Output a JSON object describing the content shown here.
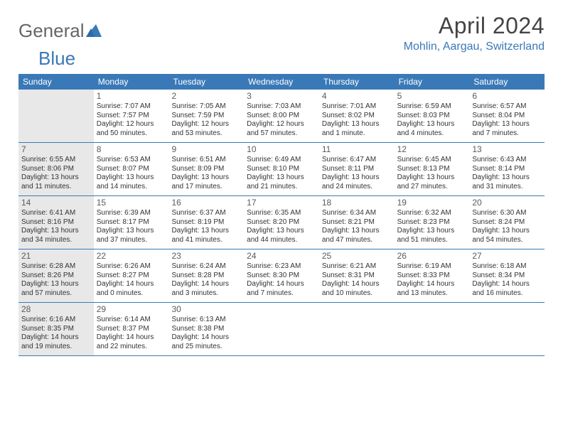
{
  "logo": {
    "part1": "General",
    "part2": "Blue"
  },
  "title": "April 2024",
  "location": "Mohlin, Aargau, Switzerland",
  "colors": {
    "header_bg": "#3a79b7",
    "header_text": "#ffffff",
    "shaded_bg": "#e8e8e8",
    "border": "#3a79b7",
    "logo_gray": "#666666",
    "logo_blue": "#3a79b7",
    "title_color": "#444444"
  },
  "day_headers": [
    "Sunday",
    "Monday",
    "Tuesday",
    "Wednesday",
    "Thursday",
    "Friday",
    "Saturday"
  ],
  "weeks": [
    [
      {
        "shaded": true
      },
      {
        "day": "1",
        "sunrise": "Sunrise: 7:07 AM",
        "sunset": "Sunset: 7:57 PM",
        "dl1": "Daylight: 12 hours",
        "dl2": "and 50 minutes."
      },
      {
        "day": "2",
        "sunrise": "Sunrise: 7:05 AM",
        "sunset": "Sunset: 7:59 PM",
        "dl1": "Daylight: 12 hours",
        "dl2": "and 53 minutes."
      },
      {
        "day": "3",
        "sunrise": "Sunrise: 7:03 AM",
        "sunset": "Sunset: 8:00 PM",
        "dl1": "Daylight: 12 hours",
        "dl2": "and 57 minutes."
      },
      {
        "day": "4",
        "sunrise": "Sunrise: 7:01 AM",
        "sunset": "Sunset: 8:02 PM",
        "dl1": "Daylight: 13 hours",
        "dl2": "and 1 minute."
      },
      {
        "day": "5",
        "sunrise": "Sunrise: 6:59 AM",
        "sunset": "Sunset: 8:03 PM",
        "dl1": "Daylight: 13 hours",
        "dl2": "and 4 minutes."
      },
      {
        "day": "6",
        "sunrise": "Sunrise: 6:57 AM",
        "sunset": "Sunset: 8:04 PM",
        "dl1": "Daylight: 13 hours",
        "dl2": "and 7 minutes."
      }
    ],
    [
      {
        "day": "7",
        "shaded": true,
        "sunrise": "Sunrise: 6:55 AM",
        "sunset": "Sunset: 8:06 PM",
        "dl1": "Daylight: 13 hours",
        "dl2": "and 11 minutes."
      },
      {
        "day": "8",
        "sunrise": "Sunrise: 6:53 AM",
        "sunset": "Sunset: 8:07 PM",
        "dl1": "Daylight: 13 hours",
        "dl2": "and 14 minutes."
      },
      {
        "day": "9",
        "sunrise": "Sunrise: 6:51 AM",
        "sunset": "Sunset: 8:09 PM",
        "dl1": "Daylight: 13 hours",
        "dl2": "and 17 minutes."
      },
      {
        "day": "10",
        "sunrise": "Sunrise: 6:49 AM",
        "sunset": "Sunset: 8:10 PM",
        "dl1": "Daylight: 13 hours",
        "dl2": "and 21 minutes."
      },
      {
        "day": "11",
        "sunrise": "Sunrise: 6:47 AM",
        "sunset": "Sunset: 8:11 PM",
        "dl1": "Daylight: 13 hours",
        "dl2": "and 24 minutes."
      },
      {
        "day": "12",
        "sunrise": "Sunrise: 6:45 AM",
        "sunset": "Sunset: 8:13 PM",
        "dl1": "Daylight: 13 hours",
        "dl2": "and 27 minutes."
      },
      {
        "day": "13",
        "sunrise": "Sunrise: 6:43 AM",
        "sunset": "Sunset: 8:14 PM",
        "dl1": "Daylight: 13 hours",
        "dl2": "and 31 minutes."
      }
    ],
    [
      {
        "day": "14",
        "shaded": true,
        "sunrise": "Sunrise: 6:41 AM",
        "sunset": "Sunset: 8:16 PM",
        "dl1": "Daylight: 13 hours",
        "dl2": "and 34 minutes."
      },
      {
        "day": "15",
        "sunrise": "Sunrise: 6:39 AM",
        "sunset": "Sunset: 8:17 PM",
        "dl1": "Daylight: 13 hours",
        "dl2": "and 37 minutes."
      },
      {
        "day": "16",
        "sunrise": "Sunrise: 6:37 AM",
        "sunset": "Sunset: 8:19 PM",
        "dl1": "Daylight: 13 hours",
        "dl2": "and 41 minutes."
      },
      {
        "day": "17",
        "sunrise": "Sunrise: 6:35 AM",
        "sunset": "Sunset: 8:20 PM",
        "dl1": "Daylight: 13 hours",
        "dl2": "and 44 minutes."
      },
      {
        "day": "18",
        "sunrise": "Sunrise: 6:34 AM",
        "sunset": "Sunset: 8:21 PM",
        "dl1": "Daylight: 13 hours",
        "dl2": "and 47 minutes."
      },
      {
        "day": "19",
        "sunrise": "Sunrise: 6:32 AM",
        "sunset": "Sunset: 8:23 PM",
        "dl1": "Daylight: 13 hours",
        "dl2": "and 51 minutes."
      },
      {
        "day": "20",
        "sunrise": "Sunrise: 6:30 AM",
        "sunset": "Sunset: 8:24 PM",
        "dl1": "Daylight: 13 hours",
        "dl2": "and 54 minutes."
      }
    ],
    [
      {
        "day": "21",
        "shaded": true,
        "sunrise": "Sunrise: 6:28 AM",
        "sunset": "Sunset: 8:26 PM",
        "dl1": "Daylight: 13 hours",
        "dl2": "and 57 minutes."
      },
      {
        "day": "22",
        "sunrise": "Sunrise: 6:26 AM",
        "sunset": "Sunset: 8:27 PM",
        "dl1": "Daylight: 14 hours",
        "dl2": "and 0 minutes."
      },
      {
        "day": "23",
        "sunrise": "Sunrise: 6:24 AM",
        "sunset": "Sunset: 8:28 PM",
        "dl1": "Daylight: 14 hours",
        "dl2": "and 3 minutes."
      },
      {
        "day": "24",
        "sunrise": "Sunrise: 6:23 AM",
        "sunset": "Sunset: 8:30 PM",
        "dl1": "Daylight: 14 hours",
        "dl2": "and 7 minutes."
      },
      {
        "day": "25",
        "sunrise": "Sunrise: 6:21 AM",
        "sunset": "Sunset: 8:31 PM",
        "dl1": "Daylight: 14 hours",
        "dl2": "and 10 minutes."
      },
      {
        "day": "26",
        "sunrise": "Sunrise: 6:19 AM",
        "sunset": "Sunset: 8:33 PM",
        "dl1": "Daylight: 14 hours",
        "dl2": "and 13 minutes."
      },
      {
        "day": "27",
        "sunrise": "Sunrise: 6:18 AM",
        "sunset": "Sunset: 8:34 PM",
        "dl1": "Daylight: 14 hours",
        "dl2": "and 16 minutes."
      }
    ],
    [
      {
        "day": "28",
        "shaded": true,
        "sunrise": "Sunrise: 6:16 AM",
        "sunset": "Sunset: 8:35 PM",
        "dl1": "Daylight: 14 hours",
        "dl2": "and 19 minutes."
      },
      {
        "day": "29",
        "sunrise": "Sunrise: 6:14 AM",
        "sunset": "Sunset: 8:37 PM",
        "dl1": "Daylight: 14 hours",
        "dl2": "and 22 minutes."
      },
      {
        "day": "30",
        "sunrise": "Sunrise: 6:13 AM",
        "sunset": "Sunset: 8:38 PM",
        "dl1": "Daylight: 14 hours",
        "dl2": "and 25 minutes."
      },
      {
        "shaded": false
      },
      {
        "shaded": false
      },
      {
        "shaded": false
      },
      {
        "shaded": false
      }
    ]
  ]
}
